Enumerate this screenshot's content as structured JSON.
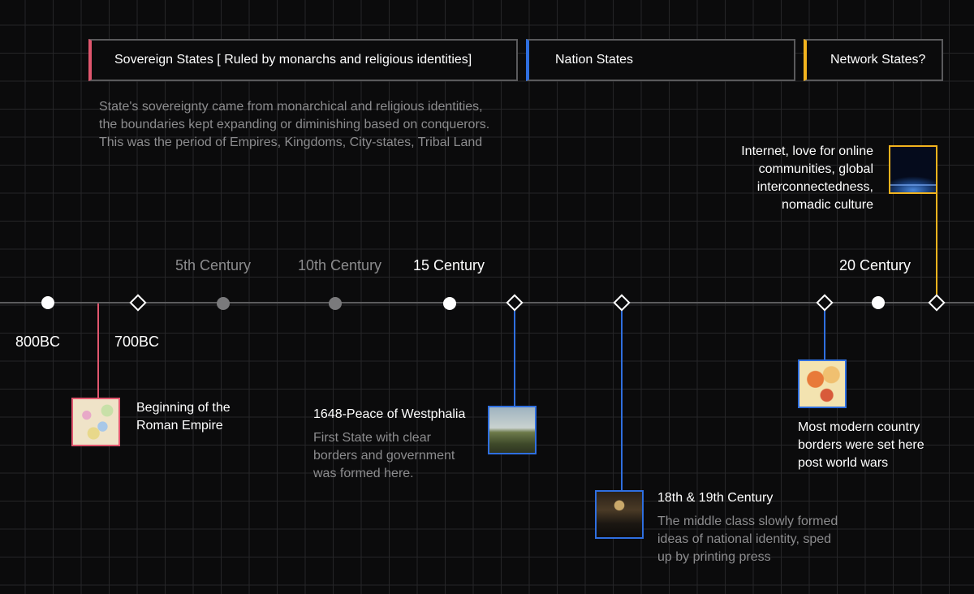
{
  "eras": {
    "sovereign": {
      "title": "Sovereign States [ Ruled by monarchs and religious identities]",
      "color": "#e0566e"
    },
    "nation": {
      "title": "Nation States",
      "color": "#2f6fe0"
    },
    "network": {
      "title": "Network States?",
      "color": "#f2b31e"
    }
  },
  "sovereign_description": [
    "State's sovereignty came from monarchical and religious identities,",
    "the boundaries kept expanding or diminishing based on conquerors.",
    "This was the period of Empires, Kingdoms, City-states, Tribal Land"
  ],
  "century_labels": {
    "c5": "5th Century",
    "c10": "10th Century",
    "c15": "15 Century",
    "c20": "20 Century"
  },
  "year_labels": {
    "bc800": "800BC",
    "bc700": "700BC"
  },
  "events": {
    "roman": {
      "title_lines": [
        "Beginning of the",
        "Roman Empire"
      ],
      "image_icon": "old-map-image"
    },
    "westphalia": {
      "title": "1648-Peace of Westphalia",
      "description_lines": [
        "First State with clear",
        "borders and government",
        "was formed here."
      ],
      "image_icon": "landscape-painting-image"
    },
    "nationalism": {
      "title": "18th & 19th Century",
      "description_lines": [
        "The middle class slowly formed",
        "ideas of national identity, sped",
        "up by printing press"
      ],
      "image_icon": "assembly-painting-image"
    },
    "worldwars": {
      "description_lines": [
        "Most modern country",
        "borders were set here",
        "post world wars"
      ],
      "image_icon": "world-map-image"
    },
    "internet": {
      "title_lines": [
        "Internet, love for online",
        "communities, global",
        "interconnectedness,",
        "nomadic culture"
      ],
      "image_icon": "earth-from-space-image"
    }
  },
  "colors": {
    "axis": "#5c5c5e",
    "dot_white": "#ffffff",
    "dot_gray": "#7a7a7c",
    "muted_text": "#8c8c8e"
  }
}
